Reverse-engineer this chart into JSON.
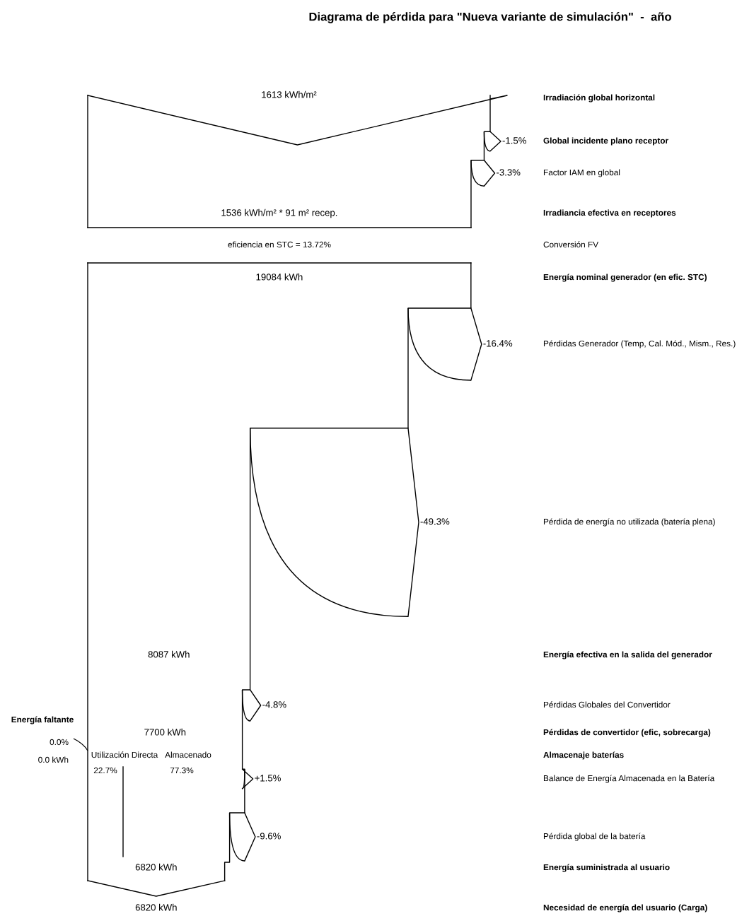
{
  "chart_data": {
    "type": "other",
    "title": "Diagrama de pérdida para \"Nueva variante de simulación\"  -  año",
    "categories": [
      "Irradiación global horizontal",
      "Global incidente plano receptor",
      "Factor IAM en global",
      "Irradiancia efectiva en receptores",
      "Conversión FV",
      "Energía nominal generador (en efic. STC)",
      "Pérdidas Generador (Temp, Cal. Mód., Mism., Res.)",
      "Pérdida de energía no utilizada (batería plena)",
      "Energía efectiva en la salida del generador",
      "Pérdidas Globales del Convertidor",
      "Pérdidas de convertidor (efic, sobrecarga)",
      "Almacenaje baterías",
      "Balance de Energía Almacenada en la Batería",
      "Pérdida global de la batería",
      "Energía suministrada al usuario",
      "Necesidad de energía del usuario (Carga)"
    ],
    "series": [
      {
        "color": "#000000",
        "values": [
          1613,
          null,
          null,
          1536,
          null,
          19084,
          null,
          null,
          8087,
          null,
          7700,
          null,
          null,
          null,
          6820,
          6820
        ],
        "value_labels": [
          "1613 kWh/m²",
          null,
          null,
          "1536 kWh/m² * 91 m² recep.",
          null,
          "19084 kWh",
          null,
          null,
          "8087 kWh",
          null,
          "7700 kWh",
          null,
          null,
          null,
          "6820 kWh",
          "6820 kWh"
        ]
      },
      {
        "color": "#000000",
        "values": [
          null,
          -1.5,
          -3.3,
          null,
          null,
          null,
          -16.4,
          -49.3,
          null,
          -4.8,
          null,
          null,
          1.5,
          -9.6,
          null,
          null
        ],
        "value_labels": [
          null,
          "-1.5%",
          "-3.3%",
          null,
          null,
          null,
          "-16.4%",
          "-49.3%",
          null,
          "-4.8%",
          null,
          null,
          "+1.5%",
          "-9.6%",
          null,
          null
        ]
      }
    ],
    "annotations": [
      "eficiencia en STC = 13.72%",
      "Energía faltante",
      "0.0%",
      "0.0 kWh",
      "Utilización Directa",
      "22.7%",
      "Almacenado",
      "77.3%"
    ]
  }
}
